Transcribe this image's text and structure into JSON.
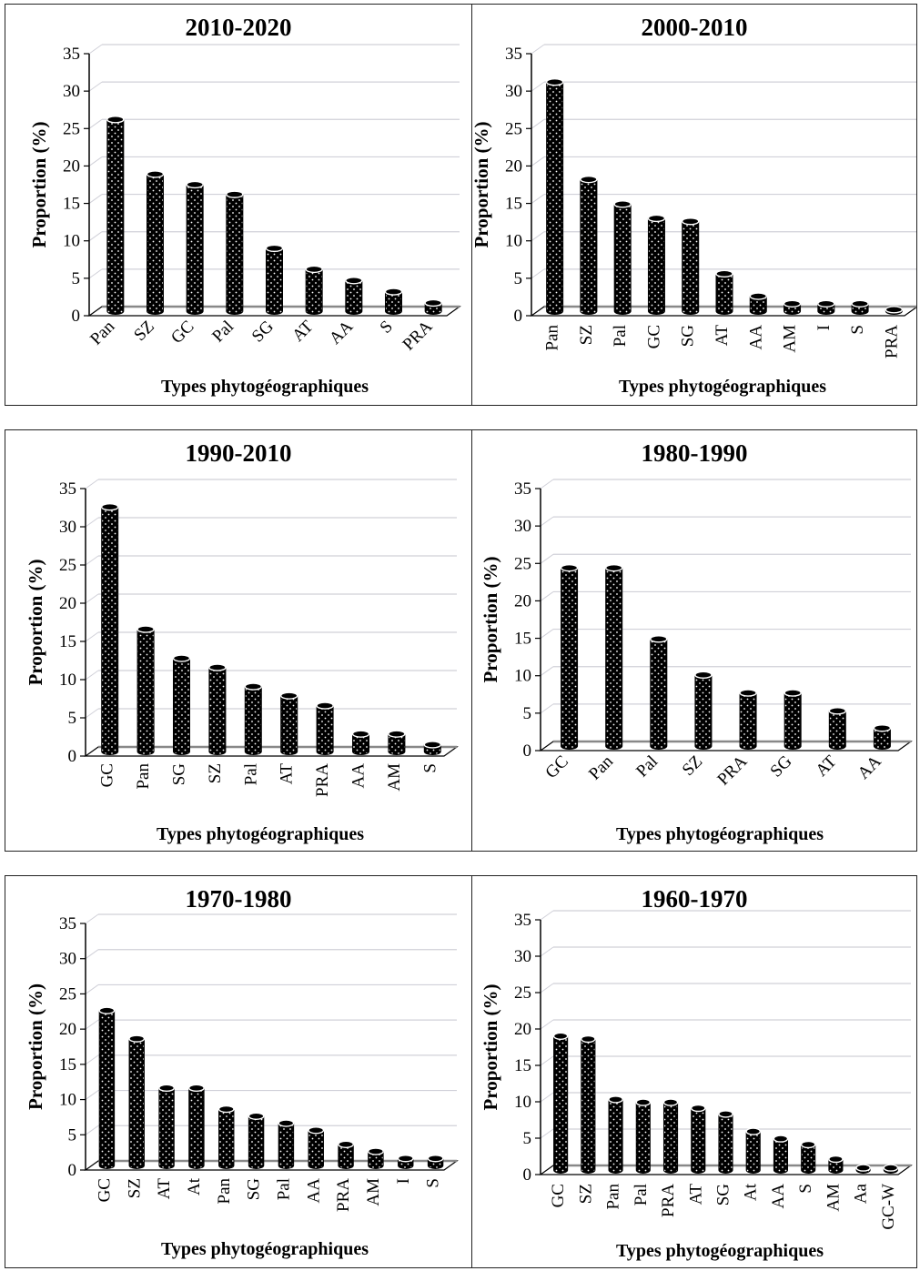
{
  "chart_data": [
    {
      "type": "bar",
      "title": "2010-2020",
      "xlabel": "Types phytogéographiques",
      "ylabel": "Proportion (%)",
      "ylim": [
        0,
        35
      ],
      "yticks": [
        0,
        5,
        10,
        15,
        20,
        25,
        30,
        35
      ],
      "grid": true,
      "categories": [
        "Pan",
        "SZ",
        "GC",
        "Pal",
        "SG",
        "AT",
        "AA",
        "S",
        "PRA"
      ],
      "values": [
        25.6,
        18.3,
        16.9,
        15.6,
        8.4,
        5.6,
        4.1,
        2.6,
        1.1
      ]
    },
    {
      "type": "bar",
      "title": "2000-2010",
      "xlabel": "Types phytogéographiques",
      "ylabel": "Proportion (%)",
      "ylim": [
        0,
        35
      ],
      "yticks": [
        0,
        5,
        10,
        15,
        20,
        25,
        30,
        35
      ],
      "grid": true,
      "categories": [
        "Pan",
        "SZ",
        "Pal",
        "GC",
        "SG",
        "AT",
        "AA",
        "AM",
        "I",
        "S",
        "PRA"
      ],
      "values": [
        30.6,
        17.6,
        14.3,
        12.4,
        12.0,
        5.0,
        2.0,
        1.0,
        1.0,
        1.0,
        0.2
      ]
    },
    {
      "type": "bar",
      "title": "1990-2010",
      "xlabel": "Types phytogéographiques",
      "ylabel": "Proportion (%)",
      "ylim": [
        0,
        35
      ],
      "yticks": [
        0,
        5,
        10,
        15,
        20,
        25,
        30,
        35
      ],
      "grid": true,
      "categories": [
        "GC",
        "Pan",
        "SG",
        "SZ",
        "Pal",
        "AT",
        "PRA",
        "AA",
        "AM",
        "S"
      ],
      "values": [
        32.0,
        16.0,
        12.2,
        11.0,
        8.5,
        7.3,
        6.0,
        2.3,
        2.3,
        0.9
      ]
    },
    {
      "type": "bar",
      "title": "1980-1990",
      "xlabel": "Types phytogéographiques",
      "ylabel": "Proportion (%)",
      "ylim": [
        0,
        35
      ],
      "yticks": [
        0,
        5,
        10,
        15,
        20,
        25,
        30,
        35
      ],
      "grid": true,
      "categories": [
        "GC",
        "Pan",
        "Pal",
        "SZ",
        "PRA",
        "SG",
        "AT",
        "AA"
      ],
      "values": [
        23.8,
        23.8,
        14.3,
        9.5,
        7.1,
        7.1,
        4.7,
        2.4
      ]
    },
    {
      "type": "bar",
      "title": "1970-1980",
      "xlabel": "Types phytogéographiques",
      "ylabel": "Proportion (%)",
      "ylim": [
        0,
        35
      ],
      "yticks": [
        0,
        5,
        10,
        15,
        20,
        25,
        30,
        35
      ],
      "grid": true,
      "categories": [
        "GC",
        "SZ",
        "AT",
        "At",
        "Pan",
        "SG",
        "Pal",
        "AA",
        "PRA",
        "AM",
        "I",
        "S"
      ],
      "values": [
        22.0,
        18.0,
        11.0,
        11.0,
        8.0,
        7.0,
        6.0,
        5.0,
        3.0,
        2.0,
        1.0,
        1.0
      ]
    },
    {
      "type": "bar",
      "title": "1960-1970",
      "xlabel": "Types phytogéographiques",
      "ylabel": "Proportion (%)",
      "ylim": [
        0,
        35
      ],
      "yticks": [
        0,
        5,
        10,
        15,
        20,
        25,
        30,
        35
      ],
      "grid": true,
      "categories": [
        "GC",
        "SZ",
        "Pan",
        "Pal",
        "PRA",
        "AT",
        "SG",
        "At",
        "AA",
        "S",
        "AM",
        "Aa",
        "GC-W"
      ],
      "values": [
        18.4,
        18.0,
        9.7,
        9.3,
        9.3,
        8.5,
        7.7,
        5.3,
        4.3,
        3.5,
        1.5,
        0.3,
        0.3
      ]
    }
  ]
}
